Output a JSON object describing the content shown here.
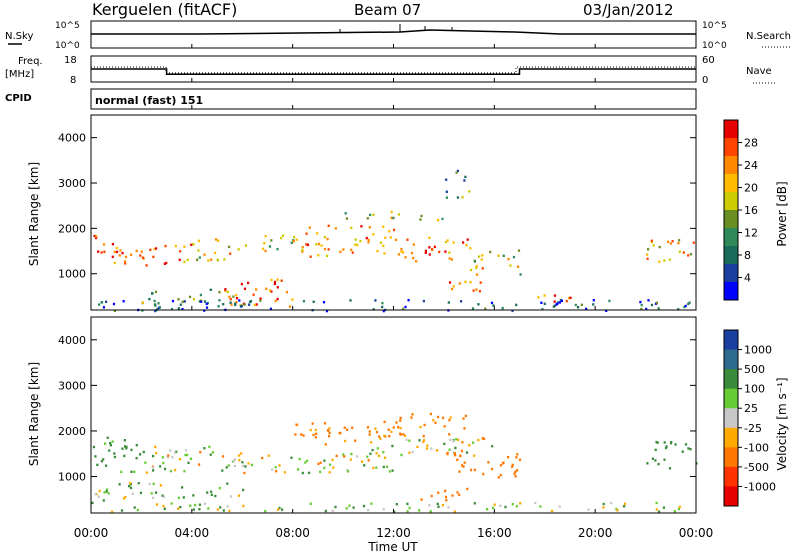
{
  "header": {
    "station": "Kerguelen (fitACF)",
    "beam": "Beam 07",
    "date": "03/Jan/2012"
  },
  "noise_panel": {
    "left_label": "N.Sky",
    "right_label": "N.Search",
    "y_top": "10^5",
    "y_bottom": "10^0",
    "yr_top": "10^5",
    "yr_bottom": "10^0"
  },
  "freq_panel": {
    "left_label_1": "Freq.",
    "left_label_2": "[MHz]",
    "right_label": "Nave",
    "y_top": "18",
    "y_bottom": "8",
    "yr_top": "60",
    "yr_bottom": "0"
  },
  "cpid_panel": {
    "label": "CPID",
    "value": "normal (fast) 151"
  },
  "power_panel": {
    "ylabel": "Slant Range [km]",
    "yticks": [
      "1000",
      "2000",
      "3000",
      "4000"
    ],
    "cbar_title": "Power [dB]",
    "cbar_labels": [
      "28",
      "24",
      "20",
      "16",
      "12",
      "8",
      "4"
    ],
    "cbar_colors": [
      "#e60000",
      "#ff4400",
      "#ff8800",
      "#ffbb00",
      "#cccc00",
      "#6b8e23",
      "#2e8b57",
      "#1a6b5a",
      "#1a3fa0",
      "#0000ff"
    ]
  },
  "velocity_panel": {
    "ylabel": "Slant Range [km]",
    "yticks": [
      "1000",
      "2000",
      "3000",
      "4000"
    ],
    "cbar_title": "Velocity [m s⁻¹]",
    "cbar_labels": [
      "1000",
      "500",
      "100",
      "25",
      "-25",
      "-100",
      "-500",
      "-1000"
    ],
    "cbar_colors": [
      "#1a3fa0",
      "#2e6b8e",
      "#3a8b3a",
      "#66cc33",
      "#c8c8c8",
      "#ffaa00",
      "#ff7700",
      "#ff3300",
      "#e60000"
    ]
  },
  "xaxis": {
    "title": "Time UT",
    "ticks": [
      "00:00",
      "04:00",
      "08:00",
      "12:00",
      "16:00",
      "20:00",
      "00:00"
    ]
  },
  "chart_data": {
    "type": "heatmap",
    "x_range_hours": [
      0,
      24
    ],
    "y_range_km": [
      200,
      4500
    ],
    "frequency_mhz": [
      {
        "t": 0,
        "f": 13
      },
      {
        "t": 3,
        "f": 13
      },
      {
        "t": 3,
        "f": 11
      },
      {
        "t": 17,
        "f": 11
      },
      {
        "t": 17,
        "f": 13
      },
      {
        "t": 24,
        "f": 13
      }
    ],
    "power_bands_db": [
      {
        "t0": 0,
        "t1": 2,
        "r0": 1200,
        "r1": 1900,
        "p": 26
      },
      {
        "t0": 2,
        "t1": 4,
        "r0": 1200,
        "r1": 1700,
        "p": 24
      },
      {
        "t0": 4,
        "t1": 6,
        "r0": 1300,
        "r1": 1800,
        "p": 18
      },
      {
        "t0": 6,
        "t1": 8,
        "r0": 1500,
        "r1": 1900,
        "p": 16
      },
      {
        "t0": 8,
        "t1": 12,
        "r0": 1400,
        "r1": 2100,
        "p": 22
      },
      {
        "t0": 12,
        "t1": 15,
        "r0": 1300,
        "r1": 1900,
        "p": 24
      },
      {
        "t0": 15,
        "t1": 17,
        "r0": 1000,
        "r1": 1600,
        "p": 18
      },
      {
        "t0": 5,
        "t1": 8,
        "r0": 300,
        "r1": 900,
        "p": 26
      },
      {
        "t0": 2,
        "t1": 6,
        "r0": 300,
        "r1": 700,
        "p": 12
      },
      {
        "t0": 14,
        "t1": 16,
        "r0": 600,
        "r1": 900,
        "p": 22
      },
      {
        "t0": 10,
        "t1": 14,
        "r0": 2200,
        "r1": 2400,
        "p": 16
      },
      {
        "t0": 17,
        "t1": 19,
        "r0": 400,
        "r1": 600,
        "p": 24
      },
      {
        "t0": 22,
        "t1": 24,
        "r0": 1200,
        "r1": 1800,
        "p": 20
      },
      {
        "t0": 14,
        "t1": 15,
        "r0": 2700,
        "r1": 3300,
        "p": 10
      },
      {
        "t0": 0,
        "t1": 24,
        "r0": 200,
        "r1": 450,
        "p": 6
      }
    ],
    "velocity_bands_ms": [
      {
        "t0": 0,
        "t1": 2,
        "r0": 1100,
        "r1": 1900,
        "v": 200
      },
      {
        "t0": 2,
        "t1": 12,
        "r0": 1100,
        "r1": 1700,
        "v": 0
      },
      {
        "t0": 8,
        "t1": 12,
        "r0": 1700,
        "r1": 2200,
        "v": -200
      },
      {
        "t0": 12,
        "t1": 16,
        "r0": 1400,
        "r1": 1900,
        "v": 0
      },
      {
        "t0": 11,
        "t1": 15,
        "r0": 1900,
        "r1": 2400,
        "v": -200
      },
      {
        "t0": 14,
        "t1": 17,
        "r0": 1000,
        "r1": 1600,
        "v": -300
      },
      {
        "t0": 13,
        "t1": 15,
        "r0": 500,
        "r1": 800,
        "v": -300
      },
      {
        "t0": 0,
        "t1": 6,
        "r0": 500,
        "r1": 900,
        "v": 80
      },
      {
        "t0": 22,
        "t1": 24,
        "r0": 1200,
        "r1": 1800,
        "v": 300
      },
      {
        "t0": 0,
        "t1": 24,
        "r0": 250,
        "r1": 450,
        "v": 50
      }
    ]
  }
}
